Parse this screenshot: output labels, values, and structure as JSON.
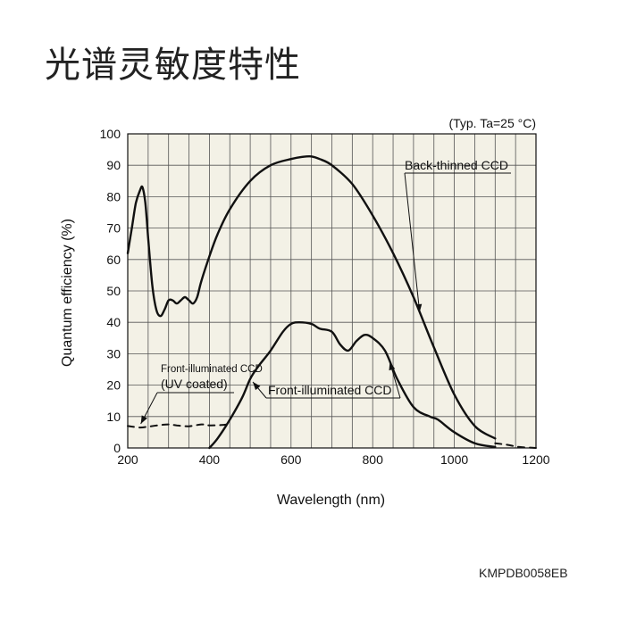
{
  "page": {
    "title": "光谱灵敏度特性",
    "doc_code": "KMPDB0058EB"
  },
  "chart_data": {
    "type": "line",
    "condition_note": "(Typ. Ta=25 °C)",
    "xlabel": "Wavelength (nm)",
    "ylabel": "Quantum efficiency (%)",
    "xlim": [
      200,
      1200
    ],
    "ylim": [
      0,
      100
    ],
    "x_ticks": [
      200,
      400,
      600,
      800,
      1000,
      1200
    ],
    "y_ticks": [
      0,
      10,
      20,
      30,
      40,
      50,
      60,
      70,
      80,
      90,
      100
    ],
    "x_grid_step": 50,
    "y_grid_step": 10,
    "grid": true,
    "background": "#f3f1e6",
    "series": [
      {
        "name": "Back-thinned CCD",
        "style": "solid",
        "x": [
          200,
          210,
          220,
          230,
          236,
          243,
          250,
          260,
          270,
          280,
          290,
          300,
          310,
          320,
          330,
          340,
          350,
          360,
          370,
          380,
          400,
          420,
          450,
          500,
          550,
          600,
          630,
          650,
          670,
          700,
          750,
          800,
          850,
          900,
          950,
          1000,
          1050,
          1100
        ],
        "y": [
          62,
          70,
          78,
          82,
          83,
          78,
          67,
          52,
          44,
          42,
          44,
          47,
          47,
          46,
          47,
          48,
          47,
          46,
          48,
          53,
          61,
          68,
          76,
          85,
          90,
          92,
          92.7,
          92.8,
          92,
          90,
          84,
          74,
          62,
          48,
          32,
          17,
          7,
          3
        ]
      },
      {
        "name": "Front-illuminated CCD",
        "style": "solid",
        "x": [
          400,
          420,
          450,
          480,
          500,
          520,
          550,
          580,
          600,
          620,
          650,
          670,
          700,
          720,
          740,
          760,
          780,
          800,
          830,
          860,
          900,
          940,
          960,
          1000,
          1050,
          1100
        ],
        "y": [
          0,
          3,
          9,
          16,
          22,
          26,
          31,
          37,
          39.5,
          40,
          39.5,
          38,
          37,
          33,
          31,
          34,
          36,
          35,
          31,
          22,
          13,
          10,
          9,
          5,
          1.5,
          0.3
        ]
      },
      {
        "name": "Front-illuminated CCD",
        "label_line2": "(UV coated)",
        "style": "dashed",
        "x": [
          200,
          230,
          250,
          280,
          300,
          320,
          350,
          380,
          400,
          430,
          450
        ],
        "y": [
          7,
          6.5,
          6.8,
          7.3,
          7.5,
          7.2,
          6.9,
          7.5,
          7.2,
          7.3,
          7.6
        ]
      },
      {
        "name": "",
        "style": "dashed",
        "x": [
          1100,
          1130,
          1160,
          1200
        ],
        "y": [
          1.5,
          1.0,
          0.3,
          0
        ]
      }
    ],
    "annotations": [
      {
        "text": "Back-thinned CCD",
        "series": 0,
        "at_x": 915
      },
      {
        "text": "Front-illuminated CCD",
        "series": 1,
        "at_x": 842
      },
      {
        "text": "Front-illuminated CCD",
        "series": 2,
        "at_x": 232
      },
      {
        "text": "(UV coated)",
        "series": 2
      }
    ]
  }
}
